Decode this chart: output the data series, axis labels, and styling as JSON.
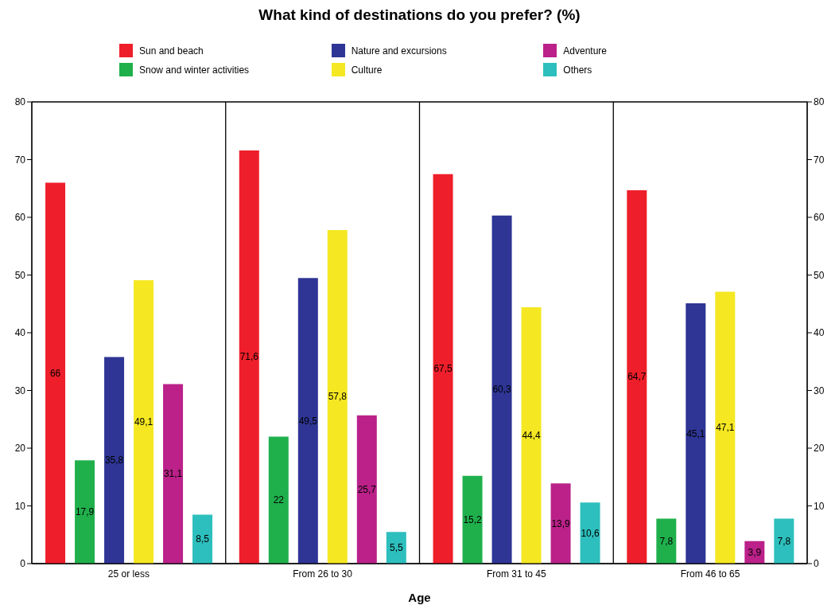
{
  "chart_data": {
    "type": "bar",
    "title": "What kind of destinations do you prefer? (%)",
    "xlabel": "Age",
    "categories": [
      "25 or less",
      "From 26 to 30",
      "From 31 to 45",
      "From 46 to 65"
    ],
    "series": [
      {
        "name": "Sun and beach",
        "color": "#ee1f2a",
        "values": [
          66,
          71.6,
          67.5,
          64.7
        ],
        "value_labels": [
          "66",
          "71,6",
          "67,5",
          "64,7"
        ]
      },
      {
        "name": "Snow and winter activities",
        "color": "#1fb04c",
        "values": [
          17.9,
          22,
          15.2,
          7.8
        ],
        "value_labels": [
          "17,9",
          "22",
          "15,2",
          "7,8"
        ]
      },
      {
        "name": "Nature and excursions",
        "color": "#2e3594",
        "values": [
          35.8,
          49.5,
          60.3,
          45.1
        ],
        "value_labels": [
          "35,8",
          "49,5",
          "60,3",
          "45,1"
        ]
      },
      {
        "name": "Culture",
        "color": "#f5e823",
        "values": [
          49.1,
          57.8,
          44.4,
          47.1
        ],
        "value_labels": [
          "49,1",
          "57,8",
          "44,4",
          "47,1"
        ]
      },
      {
        "name": "Adventure",
        "color": "#bb2189",
        "values": [
          31.1,
          25.7,
          13.9,
          3.9
        ],
        "value_labels": [
          "31,1",
          "25,7",
          "13,9",
          "3,9"
        ]
      },
      {
        "name": "Others",
        "color": "#2dbfbd",
        "values": [
          8.5,
          5.5,
          10.6,
          7.8
        ],
        "value_labels": [
          "8,5",
          "5,5",
          "10,6",
          "7,8"
        ]
      }
    ],
    "ylim": [
      0,
      80
    ],
    "yticks": [
      0,
      10,
      20,
      30,
      40,
      50,
      60,
      70,
      80
    ],
    "y2lim": [
      0,
      80
    ],
    "y2ticks": [
      0,
      10,
      20,
      30,
      40,
      50,
      60,
      70,
      80
    ],
    "grid": true,
    "legend": "top"
  }
}
